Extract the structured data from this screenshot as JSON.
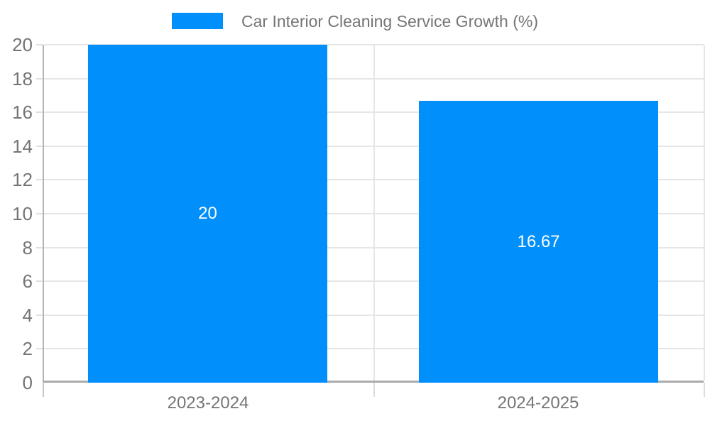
{
  "legend": {
    "swatch_color": "#008FFB"
  },
  "chart_data": {
    "type": "bar",
    "title": "Car Interior Cleaning Service Growth (%)",
    "categories": [
      "2023-2024",
      "2024-2025"
    ],
    "values": [
      20,
      16.67
    ],
    "data_labels": [
      "20",
      "16.67"
    ],
    "xlabel": "",
    "ylabel": "",
    "ylim": [
      0,
      20
    ],
    "ytick_step": 2,
    "ytick_labels": [
      "0",
      "2",
      "4",
      "6",
      "8",
      "10",
      "12",
      "14",
      "16",
      "18",
      "20"
    ],
    "grid": true,
    "legend_position": "top",
    "bar_color": "#008FFB",
    "data_label_color": "#ffffff",
    "axis_text_color": "#757575"
  }
}
